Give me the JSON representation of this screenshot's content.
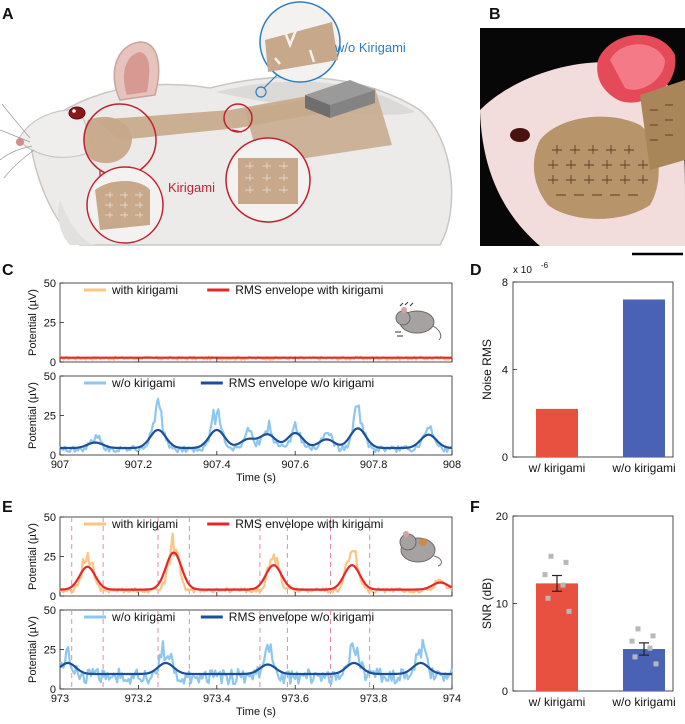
{
  "panels": {
    "A": {
      "letter": "A",
      "label_without": "w/o Kirigami",
      "label_with": "Kirigami"
    },
    "B": {
      "letter": "B"
    }
  },
  "colors": {
    "kiri_line": "#e8262a",
    "kiri_fill": "#fbc683",
    "nokiri_line": "#1c4f9a",
    "nokiri_fill": "#8ec7ee",
    "bar_kiri": "#e8513f",
    "bar_nokiri": "#4a62b4",
    "stimulus_marker": "#e87c9a",
    "callout_red": "#c0222f",
    "callout_blue": "#2d7fc1"
  },
  "chart_data": [
    {
      "id": "C",
      "type": "line",
      "letter": "C",
      "xlabel": "Time (s)",
      "xlim": [
        907,
        908
      ],
      "xticks": [
        907,
        907.2,
        907.4,
        907.6,
        907.8,
        908
      ],
      "xtick_labels": [
        "907",
        "907.2",
        "907.4",
        "907.6",
        "907.8",
        "908"
      ],
      "subplots": [
        {
          "ylabel": "Potential (µV)",
          "ylim": [
            0,
            50
          ],
          "yticks": [
            0,
            25,
            50
          ],
          "ytick_labels": [
            "0",
            "25",
            "50"
          ],
          "legend": [
            "with kirigami",
            "RMS envelope with kirigami"
          ],
          "raw_series": "with kirigami",
          "envelope_series": "RMS envelope with kirigami",
          "baseline": 2,
          "noise": 2,
          "peaks": []
        },
        {
          "ylabel": "Potential (µV)",
          "ylim": [
            0,
            50
          ],
          "yticks": [
            0,
            25,
            50
          ],
          "ytick_labels": [
            "0",
            "25",
            "50"
          ],
          "legend": [
            "w/o kirigami",
            "RMS envelope w/o kirigami"
          ],
          "raw_series": "w/o kirigami",
          "envelope_series": "RMS envelope w/o kirigami",
          "baseline": 3,
          "noise": 4,
          "peaks": [
            {
              "t": 907.09,
              "raw": 10,
              "env": 5
            },
            {
              "t": 907.25,
              "raw": 32,
              "env": 13
            },
            {
              "t": 907.4,
              "raw": 30,
              "env": 13
            },
            {
              "t": 907.48,
              "raw": 14,
              "env": 7
            },
            {
              "t": 907.53,
              "raw": 18,
              "env": 10
            },
            {
              "t": 907.6,
              "raw": 17,
              "env": 11
            },
            {
              "t": 907.68,
              "raw": 12,
              "env": 7
            },
            {
              "t": 907.76,
              "raw": 30,
              "env": 14
            },
            {
              "t": 907.94,
              "raw": 16,
              "env": 10
            }
          ]
        }
      ]
    },
    {
      "id": "D",
      "type": "bar",
      "letter": "D",
      "ylabel": "Noise RMS",
      "exponent_label": "x 10",
      "exponent_power": "-6",
      "categories": [
        "w/ kirigami",
        "w/o kirigami"
      ],
      "values": [
        2.2,
        7.2
      ],
      "ylim": [
        0,
        8
      ],
      "yticks": [
        0,
        4,
        8
      ],
      "ytick_labels": [
        "0",
        "4",
        "8"
      ]
    },
    {
      "id": "E",
      "type": "line",
      "letter": "E",
      "xlabel": "Time (s)",
      "xlim": [
        973,
        974
      ],
      "xticks": [
        973,
        973.2,
        973.4,
        973.6,
        973.8,
        974
      ],
      "xtick_labels": [
        "973",
        "973.2",
        "973.4",
        "973.6",
        "973.8",
        "974"
      ],
      "stimulus_times": [
        973.03,
        973.11,
        973.25,
        973.33,
        973.51,
        973.58,
        973.69,
        973.79
      ],
      "subplots": [
        {
          "ylabel": "Potential (µV)",
          "ylim": [
            0,
            50
          ],
          "yticks": [
            0,
            25,
            50
          ],
          "ytick_labels": [
            "0",
            "25",
            "50"
          ],
          "legend": [
            "with kirigami",
            "RMS envelope with kirigami"
          ],
          "raw_series": "with kirigami",
          "envelope_series": "RMS envelope with kirigami",
          "baseline": 3,
          "noise": 3,
          "peaks": [
            {
              "t": 973.07,
              "raw": 30,
              "env": 16
            },
            {
              "t": 973.29,
              "raw": 38,
              "env": 25
            },
            {
              "t": 973.545,
              "raw": 30,
              "env": 17
            },
            {
              "t": 973.745,
              "raw": 35,
              "env": 17
            },
            {
              "t": 973.97,
              "raw": 10,
              "env": 6
            }
          ]
        },
        {
          "ylabel": "Potential (µV)",
          "ylim": [
            0,
            50
          ],
          "yticks": [
            0,
            25,
            50
          ],
          "ytick_labels": [
            "0",
            "25",
            "50"
          ],
          "legend": [
            "w/o kirigami",
            "RMS envelope w/o kirigami"
          ],
          "raw_series": "w/o kirigami",
          "envelope_series": "RMS envelope w/o kirigami",
          "baseline": 6,
          "noise": 10,
          "peaks": [
            {
              "t": 973.02,
              "raw": 18,
              "env": 10
            },
            {
              "t": 973.27,
              "raw": 22,
              "env": 10
            },
            {
              "t": 973.53,
              "raw": 21,
              "env": 9
            },
            {
              "t": 973.75,
              "raw": 24,
              "env": 10
            },
            {
              "t": 973.92,
              "raw": 22,
              "env": 10
            }
          ]
        }
      ]
    },
    {
      "id": "F",
      "type": "bar",
      "letter": "F",
      "ylabel": "SNR (dB)",
      "categories": [
        "w/ kirigami",
        "w/o kirigami"
      ],
      "values": [
        12.3,
        4.8
      ],
      "errors": [
        0.9,
        0.7
      ],
      "points": [
        [
          15.4,
          14.7,
          13.3,
          12.1,
          10.6,
          9.1
        ],
        [
          7.1,
          6.3,
          5.7,
          4.9,
          3.9,
          3.1
        ]
      ],
      "ylim": [
        0,
        20
      ],
      "yticks": [
        0,
        10,
        20
      ],
      "ytick_labels": [
        "0",
        "10",
        "20"
      ]
    }
  ]
}
